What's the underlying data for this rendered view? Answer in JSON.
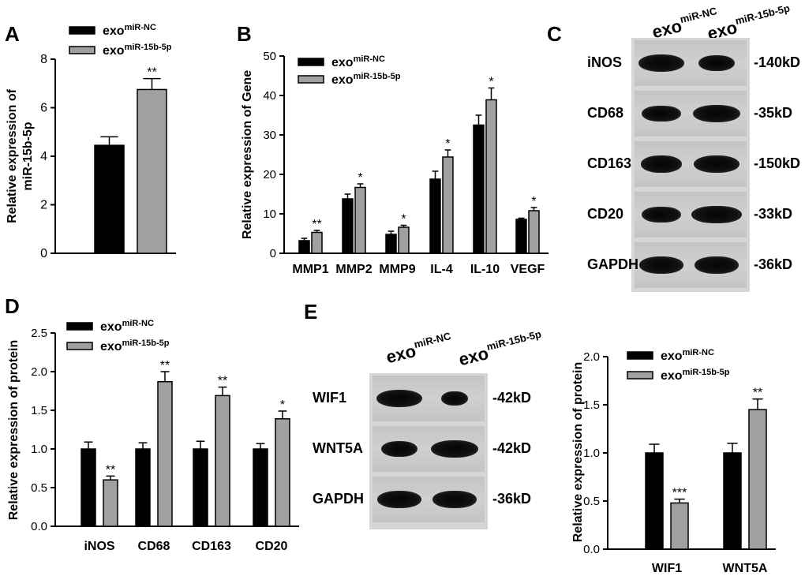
{
  "colors": {
    "nc": "#000000",
    "mir": "#a0a0a0"
  },
  "legend": {
    "nc_base": "exo",
    "nc_sup": "miR-NC",
    "mir_base": "exo",
    "mir_sup": "miR-15b-5p"
  },
  "panel_letters": {
    "a": "A",
    "b": "B",
    "c": "C",
    "d": "D",
    "e": "E"
  },
  "chart_data": [
    {
      "id": "A",
      "type": "bar",
      "ylabel": "Relative expression of miR-15b-5p",
      "ylim": [
        0,
        8
      ],
      "yticks": [
        "0",
        "2",
        "4",
        "6",
        "8"
      ],
      "categories": [
        ""
      ],
      "series": [
        {
          "name": "exo miR-NC",
          "values": [
            4.45
          ],
          "errors": [
            0.35
          ]
        },
        {
          "name": "exo miR-15b-5p",
          "values": [
            6.75
          ],
          "errors": [
            0.45
          ]
        }
      ],
      "annotations": [
        [
          "",
          "**"
        ]
      ]
    },
    {
      "id": "B",
      "type": "bar",
      "ylabel": "Relative expression of Gene",
      "ylim": [
        0,
        50
      ],
      "yticks": [
        "0",
        "10",
        "20",
        "30",
        "40",
        "50"
      ],
      "categories": [
        "MMP1",
        "MMP2",
        "MMP9",
        "IL-4",
        "IL-10",
        "VEGF"
      ],
      "series": [
        {
          "name": "exo miR-NC",
          "values": [
            3.2,
            13.8,
            4.8,
            18.8,
            32.5,
            8.6
          ],
          "errors": [
            0.6,
            1.2,
            0.8,
            2.0,
            2.5,
            0.3
          ]
        },
        {
          "name": "exo miR-15b-5p",
          "values": [
            5.3,
            16.7,
            6.6,
            24.4,
            38.9,
            10.8
          ],
          "errors": [
            0.5,
            0.9,
            0.5,
            1.8,
            3.0,
            0.8
          ]
        }
      ],
      "annotations": [
        [
          "",
          "**"
        ],
        [
          "",
          "*"
        ],
        [
          "",
          "*"
        ],
        [
          "",
          "*"
        ],
        [
          "",
          "*"
        ],
        [
          "",
          "*"
        ]
      ]
    },
    {
      "id": "D",
      "type": "bar",
      "ylabel": "Relative expression of protein",
      "ylim": [
        0,
        2.5
      ],
      "yticks": [
        "0.0",
        "0.5",
        "1.0",
        "1.5",
        "2.0",
        "2.5"
      ],
      "categories": [
        "iNOS",
        "CD68",
        "CD163",
        "CD20"
      ],
      "series": [
        {
          "name": "exo miR-NC",
          "values": [
            1.0,
            1.0,
            1.0,
            1.0
          ],
          "errors": [
            0.09,
            0.08,
            0.1,
            0.07
          ]
        },
        {
          "name": "exo miR-15b-5p",
          "values": [
            0.6,
            1.87,
            1.69,
            1.39
          ],
          "errors": [
            0.05,
            0.13,
            0.11,
            0.1
          ]
        }
      ],
      "annotations": [
        [
          "",
          "**"
        ],
        [
          "",
          "**"
        ],
        [
          "",
          "**"
        ],
        [
          "",
          "*"
        ]
      ]
    },
    {
      "id": "E",
      "type": "bar",
      "ylabel": "Relative expression of protein",
      "ylim": [
        0,
        2.0
      ],
      "yticks": [
        "0.0",
        "0.5",
        "1.0",
        "1.5",
        "2.0"
      ],
      "categories": [
        "WIF1",
        "WNT5A"
      ],
      "series": [
        {
          "name": "exo miR-NC",
          "values": [
            1.0,
            1.0
          ],
          "errors": [
            0.09,
            0.1
          ]
        },
        {
          "name": "exo miR-15b-5p",
          "values": [
            0.48,
            1.45
          ],
          "errors": [
            0.04,
            0.11
          ]
        }
      ],
      "annotations": [
        [
          "",
          "***"
        ],
        [
          "",
          "**"
        ]
      ]
    }
  ],
  "blot_c": {
    "rows": [
      {
        "label": "iNOS",
        "kd": "-140kD",
        "nc": 1.0,
        "mir": 0.8
      },
      {
        "label": "CD68",
        "kd": "-35kD",
        "nc": 0.85,
        "mir": 1.05
      },
      {
        "label": "CD163",
        "kd": "-150kD",
        "nc": 0.9,
        "mir": 1.0
      },
      {
        "label": "CD20",
        "kd": "-33kD",
        "nc": 0.85,
        "mir": 1.1
      },
      {
        "label": "GAPDH",
        "kd": "-36kD",
        "nc": 0.95,
        "mir": 0.95
      }
    ]
  },
  "blot_e": {
    "rows": [
      {
        "label": "WIF1",
        "kd": "-42kD",
        "nc": 1.0,
        "mir": 0.6
      },
      {
        "label": "WNT5A",
        "kd": "-42kD",
        "nc": 0.8,
        "mir": 1.05
      },
      {
        "label": "GAPDH",
        "kd": "-36kD",
        "nc": 0.95,
        "mir": 0.95
      }
    ]
  }
}
